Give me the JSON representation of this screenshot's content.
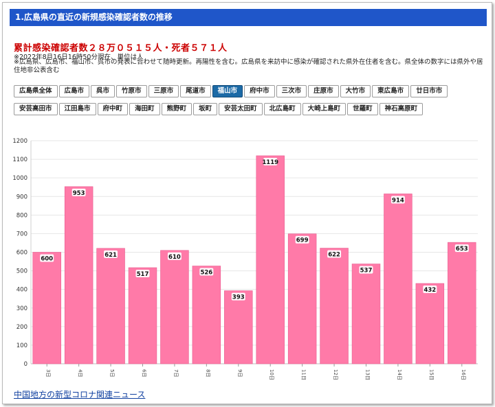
{
  "header": {
    "title": "1.広島県の直近の新規感染確認者数の推移"
  },
  "summary": {
    "total_text": "累計感染確認者数２８万０５１５人・死者５７１人",
    "asof_text": "※2022年8月16日16時50分現在、単位は人",
    "note_text": "※広島県、広島市、福山市、呉市の発表に合わせて随時更新。再陽性を含む。広島県を来訪中に感染が確認された県外在住者を含む。県全体の数字には県外や居住地非公表含む"
  },
  "buttons": [
    {
      "label": "広島県全体"
    },
    {
      "label": "広島市"
    },
    {
      "label": "呉市"
    },
    {
      "label": "竹原市"
    },
    {
      "label": "三原市"
    },
    {
      "label": "尾道市"
    },
    {
      "label": "福山市",
      "active": true
    },
    {
      "label": "府中市"
    },
    {
      "label": "三次市"
    },
    {
      "label": "庄原市"
    },
    {
      "label": "大竹市"
    },
    {
      "label": "東広島市"
    },
    {
      "label": "廿日市市"
    },
    {
      "label": "安芸高田市"
    },
    {
      "label": "江田島市"
    },
    {
      "label": "府中町"
    },
    {
      "label": "海田町"
    },
    {
      "label": "熊野町"
    },
    {
      "label": "坂町"
    },
    {
      "label": "安芸太田町"
    },
    {
      "label": "北広島町"
    },
    {
      "label": "大崎上島町"
    },
    {
      "label": "世羅町"
    },
    {
      "label": "神石高原町"
    }
  ],
  "colors": {
    "bar": "#ff7aa8",
    "bar_edge": "#e85d90",
    "header": "#1f56c9",
    "active_button": "#1c6aa6",
    "total_text": "#cc0000"
  },
  "chart_data": {
    "type": "bar",
    "categories": [
      "3日",
      "4日",
      "5日",
      "6日",
      "7日",
      "8日",
      "9日",
      "10日",
      "11日",
      "12日",
      "13日",
      "14日",
      "15日",
      "16日"
    ],
    "values": [
      600,
      953,
      621,
      517,
      610,
      526,
      393,
      1119,
      699,
      622,
      537,
      914,
      432,
      653
    ],
    "ylim": [
      0,
      1200
    ],
    "yticks": [
      0,
      100,
      200,
      300,
      400,
      500,
      600,
      700,
      800,
      900,
      1000,
      1100,
      1200
    ],
    "grid": true,
    "data_labels": true
  },
  "footer": {
    "link_text": "中国地方の新型コロナ関連ニュース"
  }
}
